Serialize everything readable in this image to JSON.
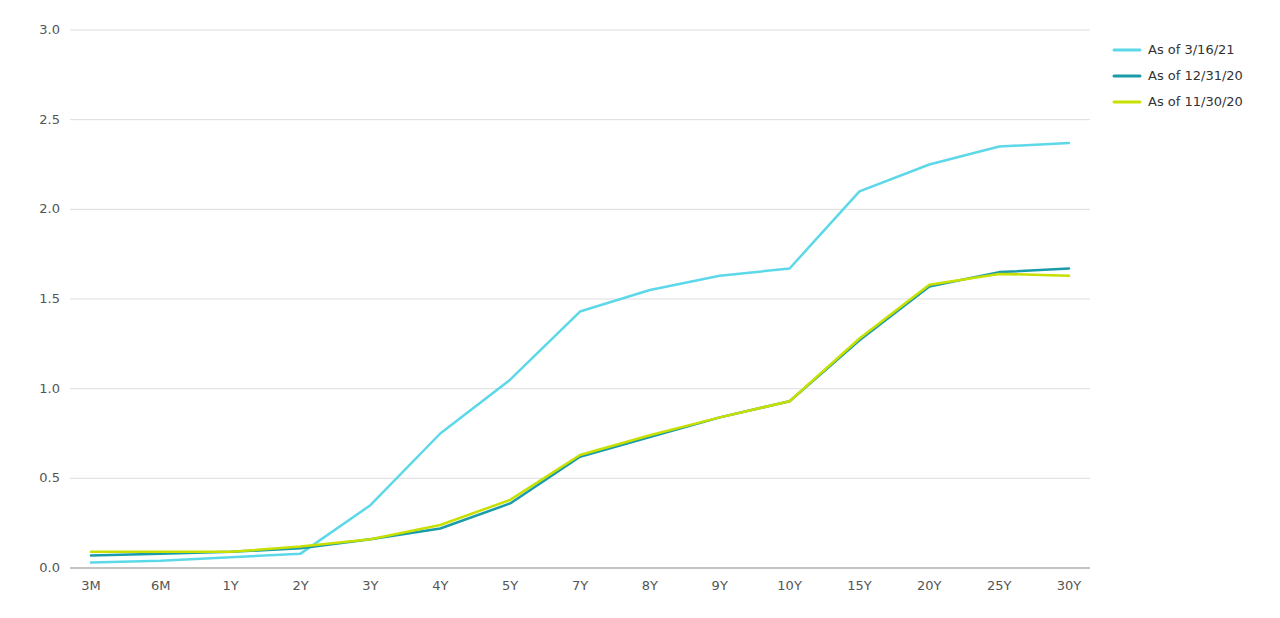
{
  "chart_data": {
    "type": "line",
    "categories": [
      "3M",
      "6M",
      "1Y",
      "2Y",
      "3Y",
      "4Y",
      "5Y",
      "7Y",
      "8Y",
      "9Y",
      "10Y",
      "15Y",
      "20Y",
      "25Y",
      "30Y"
    ],
    "series": [
      {
        "name": "As of 3/16/21",
        "color": "#5DD8E8",
        "values": [
          0.03,
          0.04,
          0.06,
          0.08,
          0.35,
          0.75,
          1.05,
          1.43,
          1.55,
          1.63,
          1.67,
          2.1,
          2.25,
          2.35,
          2.37
        ]
      },
      {
        "name": "As of 12/31/20",
        "color": "#1A9BAA",
        "values": [
          0.07,
          0.08,
          0.09,
          0.11,
          0.16,
          0.22,
          0.36,
          0.62,
          0.73,
          0.84,
          0.93,
          1.27,
          1.57,
          1.65,
          1.67
        ]
      },
      {
        "name": "As of 11/30/20",
        "color": "#C8E000",
        "values": [
          0.09,
          0.09,
          0.09,
          0.12,
          0.16,
          0.24,
          0.38,
          0.63,
          0.74,
          0.84,
          0.93,
          1.28,
          1.58,
          1.64,
          1.63
        ]
      }
    ],
    "ylim": [
      0.0,
      3.0
    ],
    "yticks": [
      {
        "value": 0.0,
        "label": "0.0"
      },
      0.5,
      {
        "value": 1.0,
        "label": "1.0"
      },
      1.5,
      {
        "value": 2.0,
        "label": "2.0"
      },
      2.5,
      {
        "value": 3.0,
        "label": "3.0"
      }
    ],
    "grid": true,
    "legend": "right"
  }
}
